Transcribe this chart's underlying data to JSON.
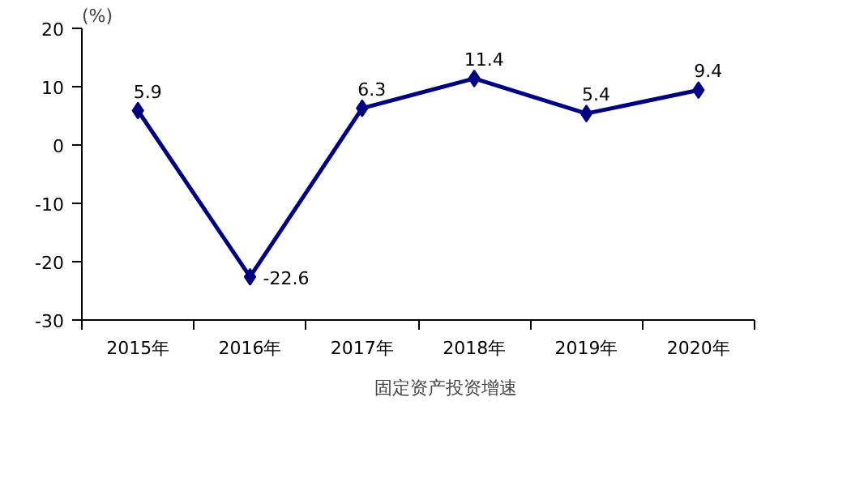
{
  "chart_data": {
    "type": "line",
    "ylabel": "(%)",
    "categories": [
      "2015年",
      "2016年",
      "2017年",
      "2018年",
      "2019年",
      "2020年"
    ],
    "series": [
      {
        "name": "固定资产投资增速",
        "color": "#000080",
        "values": [
          5.9,
          -22.6,
          6.3,
          11.4,
          5.4,
          9.4
        ]
      }
    ],
    "ylim": [
      -30,
      20
    ],
    "yticks": [
      -30,
      -20,
      -10,
      0,
      10,
      20
    ],
    "grid": false,
    "legend": "bottom",
    "marker": "diamond",
    "line_style": "solid",
    "data_labels": true
  }
}
